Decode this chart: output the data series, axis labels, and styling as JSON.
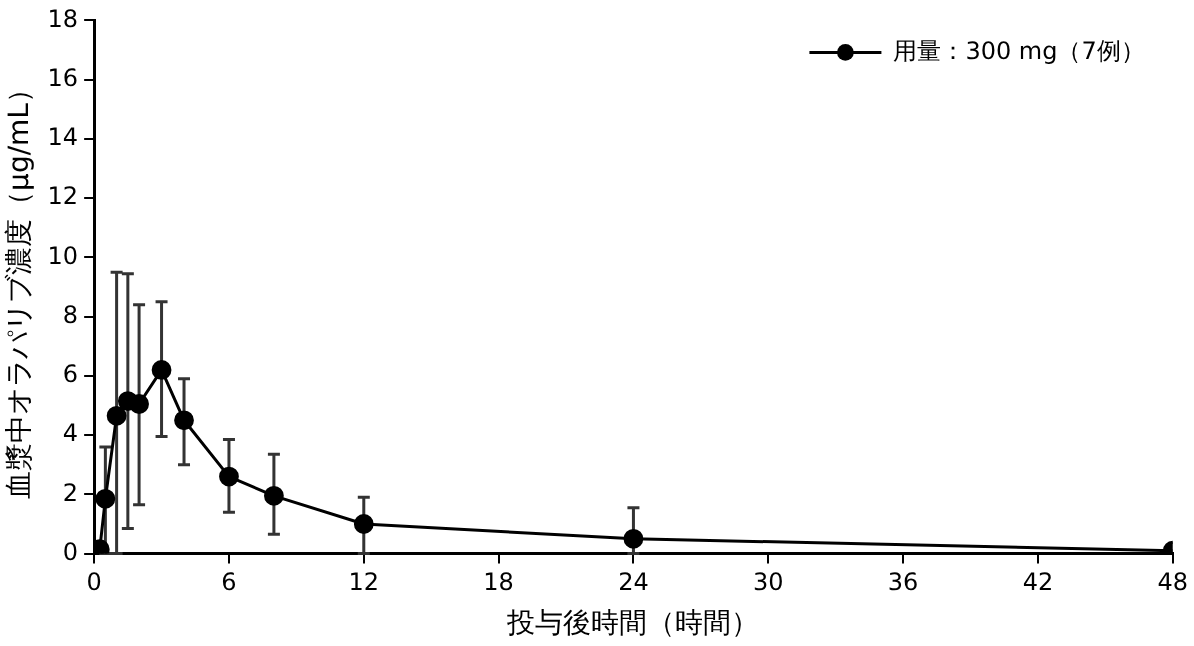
{
  "chart_data": {
    "type": "line",
    "xlabel": "投与後時間（時間）",
    "ylabel": "血漿中オラパリブ濃度（µg/mL）",
    "x": [
      0,
      0.25,
      0.5,
      1,
      1.5,
      2,
      3,
      4,
      6,
      8,
      12,
      24,
      48
    ],
    "series": [
      {
        "name": "用量：300 mg（7例）",
        "color": "#000000",
        "values": [
          0,
          0.15,
          1.85,
          4.65,
          5.15,
          5.05,
          6.2,
          4.5,
          2.6,
          1.95,
          1.0,
          0.5,
          0.1
        ],
        "errors": [
          null,
          null,
          [
            0,
            3.6
          ],
          [
            0,
            9.5
          ],
          [
            0.85,
            9.45
          ],
          [
            1.65,
            8.4
          ],
          [
            3.95,
            8.5
          ],
          [
            3.0,
            5.9
          ],
          [
            1.4,
            3.85
          ],
          [
            0.65,
            3.35
          ],
          [
            0,
            1.9
          ],
          [
            0,
            1.55
          ],
          null
        ]
      }
    ],
    "xlim": [
      0,
      48
    ],
    "xticks": [
      0,
      6,
      12,
      18,
      24,
      30,
      36,
      42,
      48
    ],
    "ylim": [
      0,
      18
    ],
    "yticks": [
      0,
      2,
      4,
      6,
      8,
      10,
      12,
      14,
      16,
      18
    ],
    "grid": false,
    "legend": "top right",
    "marker": "circle",
    "line_style": "solid"
  }
}
